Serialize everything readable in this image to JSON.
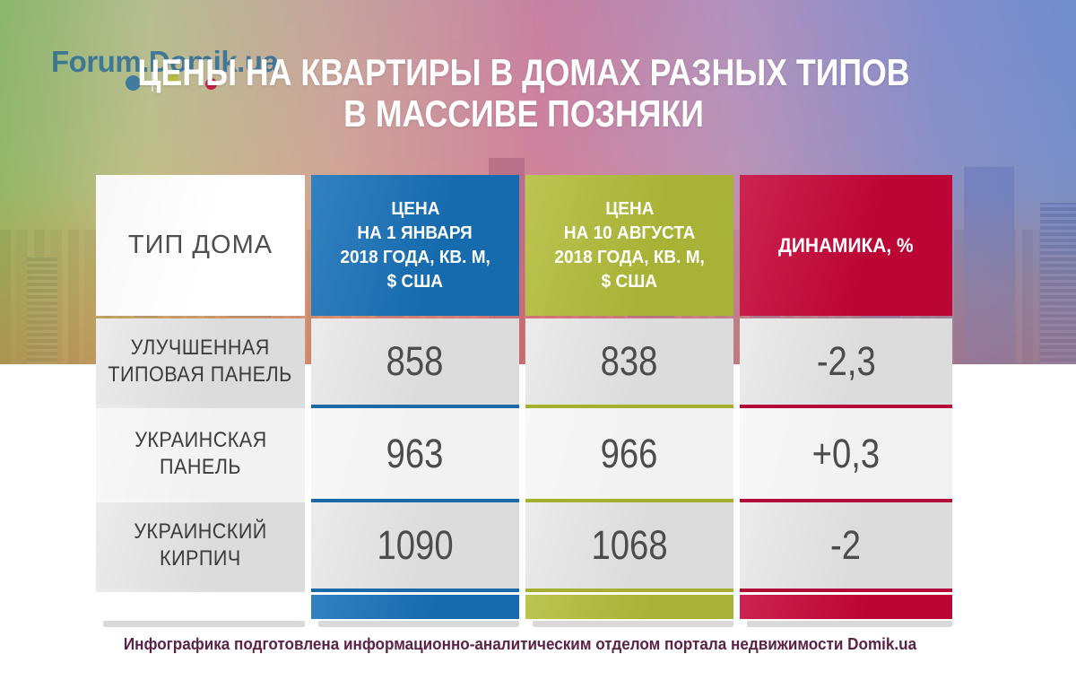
{
  "logo": {
    "text": "Forum.Domik.ua"
  },
  "title": {
    "line1": "ЦЕНЫ НА КВАРТИРЫ В ДОМАХ РАЗНЫХ ТИПОВ",
    "line2": "В МАССИВЕ ПОЗНЯКИ"
  },
  "colors": {
    "blue": "#1770b7",
    "olive": "#b1bc39",
    "crimson": "#c50538",
    "row_gray": "#dcdcdc",
    "row_light": "#f2f2f2",
    "credit_text": "#5b2346",
    "logo_blue": "#236698"
  },
  "table": {
    "type_header": "ТИП ДОМА",
    "jan_header": [
      "ЦЕНА",
      "НА 1 ЯНВАРЯ",
      "2018 ГОДА, КВ. М,",
      "$ США"
    ],
    "aug_header": [
      "ЦЕНА",
      "НА 10 АВГУСТА",
      "2018 ГОДА, КВ. М,",
      "$ США"
    ],
    "dyn_header": "ДИНАМИКА, %",
    "rows": [
      {
        "label1": "УЛУЧШЕННАЯ",
        "label2": "ТИПОВАЯ ПАНЕЛЬ",
        "jan": "858",
        "aug": "838",
        "dyn": "-2,3"
      },
      {
        "label1": "УКРАИНСКАЯ",
        "label2": "ПАНЕЛЬ",
        "jan": "963",
        "aug": "966",
        "dyn": "+0,3"
      },
      {
        "label1": "УКРАИНСКИЙ",
        "label2": "КИРПИЧ",
        "jan": "1090",
        "aug": "1068",
        "dyn": "-2"
      }
    ]
  },
  "chart_data": {
    "type": "table",
    "title": "ЦЕНЫ НА КВАРТИРЫ В ДОМАХ РАЗНЫХ ТИПОВ В МАССИВЕ ПОЗНЯКИ",
    "columns": [
      "ТИП ДОМА",
      "ЦЕНА НА 1 ЯНВАРЯ 2018 ГОДА, КВ. М, $ США",
      "ЦЕНА НА 10 АВГУСТА 2018 ГОДА, КВ. М, $ США",
      "ДИНАМИКА, %"
    ],
    "rows": [
      {
        "type": "УЛУЧШЕННАЯ ТИПОВАЯ ПАНЕЛЬ",
        "price_jan_2018": 858,
        "price_aug_2018": 838,
        "dynamics_pct": -2.3
      },
      {
        "type": "УКРАИНСКАЯ ПАНЕЛЬ",
        "price_jan_2018": 963,
        "price_aug_2018": 966,
        "dynamics_pct": 0.3
      },
      {
        "type": "УКРАИНСКИЙ КИРПИЧ",
        "price_jan_2018": 1090,
        "price_aug_2018": 1068,
        "dynamics_pct": -2
      }
    ]
  },
  "footer": {
    "credit": "Инфографика подготовлена информационно-аналитическим отделом портала недвижимости Domik.ua"
  }
}
